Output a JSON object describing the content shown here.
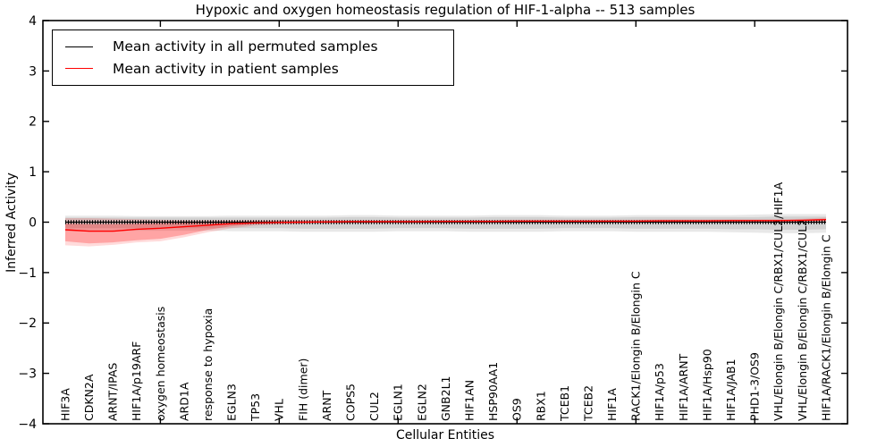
{
  "title": "Hypoxic and oxygen homeostasis regulation of HIF-1-alpha -- 513 samples",
  "axes": {
    "xlabel": "Cellular Entities",
    "ylabel": "Inferred Activity"
  },
  "legend": {
    "items": [
      {
        "label": "Mean activity in all permuted samples",
        "color": "#000000"
      },
      {
        "label": "Mean activity in patient samples",
        "color": "#ff0000"
      }
    ]
  },
  "colors": {
    "permuted_line": "#000000",
    "patient_line": "#ff0000",
    "permuted_band": "#808080",
    "patient_band": "#ff0000",
    "axis": "#000000",
    "background": "#ffffff"
  },
  "chart_data": {
    "type": "line",
    "title": "Hypoxic and oxygen homeostasis regulation of HIF-1-alpha -- 513 samples",
    "xlabel": "Cellular Entities",
    "ylabel": "Inferred Activity",
    "ylim": [
      -4,
      4
    ],
    "yticks": [
      -4,
      -3,
      -2,
      -1,
      0,
      1,
      2,
      3,
      4
    ],
    "ytick_labels": [
      "−4",
      "−3",
      "−2",
      "−1",
      "0",
      "1",
      "2",
      "3",
      "4"
    ],
    "xticks": [
      5,
      10,
      15,
      20,
      25,
      30
    ],
    "grid": false,
    "legend_position": "upper left",
    "categories": [
      "HIF3A",
      "CDKN2A",
      "ARNT/IPAS",
      "HIF1A/p19ARF",
      "oxygen homeostasis",
      "ARD1A",
      "response to hypoxia",
      "EGLN3",
      "TP53",
      "VHL",
      "FIH (dimer)",
      "ARNT",
      "COPS5",
      "CUL2",
      "EGLN1",
      "EGLN2",
      "GNB2L1",
      "HIF1AN",
      "HSP90AA1",
      "OS9",
      "RBX1",
      "TCEB1",
      "TCEB2",
      "HIF1A",
      "RACK1/Elongin B/Elongin C",
      "HIF1A/p53",
      "HIF1A/ARNT",
      "HIF1A/Hsp90",
      "HIF1A/JAB1",
      "PHD1-3/OS9",
      "VHL/Elongin B/Elongin C/RBX1/CUL2/HIF1A",
      "VHL/Elongin B/Elongin C/RBX1/CUL2",
      "HIF1A/RACK1/Elongin B/Elongin C"
    ],
    "series": [
      {
        "name": "Mean activity in all permuted samples",
        "color": "#000000",
        "values": [
          0,
          0,
          0,
          0,
          0,
          0,
          0,
          0,
          0,
          0,
          0,
          0,
          0,
          0,
          0,
          0,
          0,
          0,
          0,
          0,
          0,
          0,
          0,
          0,
          0,
          0,
          0,
          0,
          0,
          0,
          0,
          0,
          0
        ],
        "band1_upper": [
          0.09,
          0.09,
          0.09,
          0.09,
          0.09,
          0.09,
          0.09,
          0.09,
          0.09,
          0.09,
          0.09,
          0.09,
          0.1,
          0.1,
          0.09,
          0.09,
          0.09,
          0.09,
          0.1,
          0.1,
          0.1,
          0.09,
          0.09,
          0.09,
          0.1,
          0.1,
          0.1,
          0.1,
          0.1,
          0.1,
          0.11,
          0.11,
          0.11
        ],
        "band1_lower": [
          -0.12,
          -0.12,
          -0.12,
          -0.12,
          -0.12,
          -0.12,
          -0.12,
          -0.12,
          -0.12,
          -0.12,
          -0.13,
          -0.13,
          -0.13,
          -0.13,
          -0.12,
          -0.12,
          -0.12,
          -0.13,
          -0.13,
          -0.13,
          -0.13,
          -0.12,
          -0.12,
          -0.12,
          -0.13,
          -0.13,
          -0.13,
          -0.13,
          -0.14,
          -0.14,
          -0.15,
          -0.15,
          -0.14
        ],
        "band2_upper": [
          0.13,
          0.13,
          0.13,
          0.12,
          0.12,
          0.12,
          0.12,
          0.13,
          0.13,
          0.13,
          0.13,
          0.13,
          0.14,
          0.14,
          0.13,
          0.13,
          0.13,
          0.13,
          0.14,
          0.14,
          0.14,
          0.13,
          0.13,
          0.13,
          0.14,
          0.14,
          0.14,
          0.14,
          0.14,
          0.15,
          0.16,
          0.16,
          0.16
        ],
        "band2_lower": [
          -0.18,
          -0.18,
          -0.18,
          -0.17,
          -0.17,
          -0.17,
          -0.17,
          -0.18,
          -0.18,
          -0.18,
          -0.19,
          -0.19,
          -0.19,
          -0.19,
          -0.18,
          -0.18,
          -0.18,
          -0.19,
          -0.19,
          -0.19,
          -0.19,
          -0.18,
          -0.18,
          -0.18,
          -0.19,
          -0.19,
          -0.19,
          -0.19,
          -0.2,
          -0.21,
          -0.22,
          -0.22,
          -0.21
        ]
      },
      {
        "name": "Mean activity in patient samples",
        "color": "#ff0000",
        "values": [
          -0.15,
          -0.18,
          -0.18,
          -0.14,
          -0.12,
          -0.09,
          -0.06,
          -0.03,
          -0.015,
          -0.005,
          0.0,
          0.005,
          0.01,
          0.01,
          0.01,
          0.01,
          0.015,
          0.015,
          0.015,
          0.02,
          0.02,
          0.02,
          0.02,
          0.02,
          0.02,
          0.025,
          0.025,
          0.025,
          0.03,
          0.03,
          0.03,
          0.035,
          0.05
        ],
        "band1_upper": [
          -0.03,
          -0.04,
          -0.04,
          -0.03,
          -0.02,
          -0.01,
          0.0,
          0.01,
          0.01,
          0.02,
          0.02,
          0.02,
          0.025,
          0.025,
          0.025,
          0.025,
          0.03,
          0.03,
          0.03,
          0.035,
          0.035,
          0.035,
          0.035,
          0.035,
          0.035,
          0.04,
          0.04,
          0.04,
          0.045,
          0.045,
          0.045,
          0.05,
          0.07
        ],
        "band1_lower": [
          -0.38,
          -0.42,
          -0.4,
          -0.36,
          -0.33,
          -0.25,
          -0.15,
          -0.08,
          -0.04,
          -0.02,
          -0.01,
          -0.01,
          0.0,
          0.0,
          0.0,
          0.0,
          0.005,
          0.005,
          0.005,
          0.01,
          0.01,
          0.01,
          0.01,
          0.01,
          0.01,
          0.015,
          0.015,
          0.015,
          0.02,
          0.02,
          0.02,
          0.025,
          0.03
        ],
        "band2_upper": [
          0.08,
          0.08,
          0.07,
          0.06,
          0.05,
          0.04,
          0.04,
          0.04,
          0.04,
          0.04,
          0.04,
          0.04,
          0.04,
          0.04,
          0.04,
          0.04,
          0.045,
          0.045,
          0.045,
          0.05,
          0.05,
          0.05,
          0.05,
          0.05,
          0.05,
          0.055,
          0.055,
          0.055,
          0.06,
          0.06,
          0.06,
          0.065,
          0.09
        ],
        "band2_lower": [
          -0.46,
          -0.48,
          -0.45,
          -0.4,
          -0.38,
          -0.3,
          -0.2,
          -0.12,
          -0.07,
          -0.05,
          -0.03,
          -0.03,
          -0.02,
          -0.02,
          -0.02,
          -0.02,
          -0.015,
          -0.015,
          -0.015,
          -0.01,
          -0.01,
          -0.01,
          -0.01,
          -0.01,
          -0.01,
          -0.005,
          -0.005,
          -0.005,
          0.0,
          0.0,
          0.0,
          0.005,
          0.01
        ]
      }
    ]
  }
}
